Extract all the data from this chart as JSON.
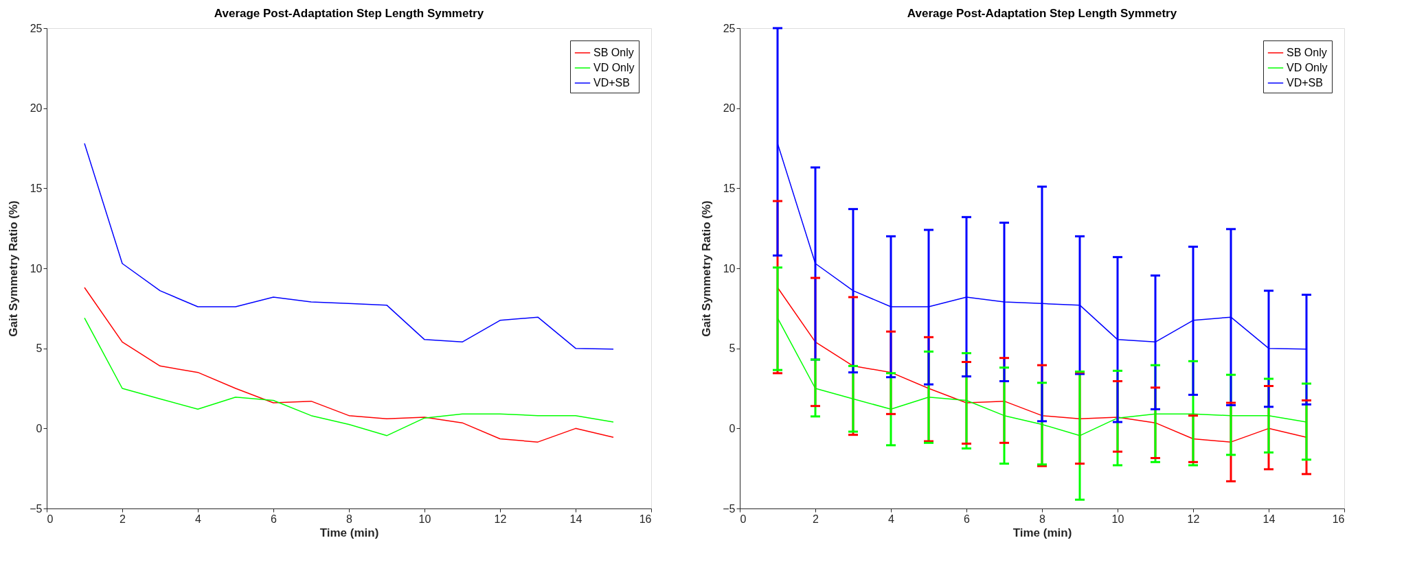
{
  "chart_data": [
    {
      "type": "line",
      "title": "Average Post-Adaptation Step Length Symmetry",
      "xlabel": "Time (min)",
      "ylabel": "Gait Symmetry Ratio (%)",
      "x": [
        1,
        2,
        3,
        4,
        5,
        6,
        7,
        8,
        9,
        10,
        11,
        12,
        13,
        14,
        15
      ],
      "xlim": [
        0,
        16
      ],
      "xticks": [
        0,
        2,
        4,
        6,
        8,
        10,
        12,
        14,
        16
      ],
      "ylim": [
        -5,
        25
      ],
      "yticks": [
        -5,
        0,
        5,
        10,
        15,
        20,
        25
      ],
      "grid": false,
      "legend": "top right",
      "line_style": "solid",
      "series": [
        {
          "name": "SB Only",
          "color": "#ff0000",
          "values": [
            8.8,
            5.4,
            3.9,
            3.5,
            2.5,
            1.6,
            1.7,
            0.8,
            0.6,
            0.7,
            0.35,
            -0.65,
            -0.85,
            0.0,
            -0.55
          ]
        },
        {
          "name": "VD Only",
          "color": "#00ff00",
          "values": [
            6.9,
            2.5,
            1.85,
            1.2,
            1.95,
            1.75,
            0.8,
            0.25,
            -0.45,
            0.65,
            0.9,
            0.9,
            0.8,
            0.8,
            0.4
          ]
        },
        {
          "name": "VD+SB",
          "color": "#0000ff",
          "values": [
            17.8,
            10.3,
            8.6,
            7.6,
            7.6,
            8.2,
            7.9,
            7.8,
            7.7,
            5.55,
            5.4,
            6.75,
            6.95,
            5.0,
            4.95
          ]
        }
      ]
    },
    {
      "type": "line",
      "title": "Average Post-Adaptation Step Length Symmetry",
      "xlabel": "Time (min)",
      "ylabel": "Gait Symmetry Ratio (%)",
      "x": [
        1,
        2,
        3,
        4,
        5,
        6,
        7,
        8,
        9,
        10,
        11,
        12,
        13,
        14,
        15
      ],
      "xlim": [
        0,
        16
      ],
      "xticks": [
        0,
        2,
        4,
        6,
        8,
        10,
        12,
        14,
        16
      ],
      "ylim": [
        -5,
        25
      ],
      "yticks": [
        -5,
        0,
        5,
        10,
        15,
        20,
        25
      ],
      "grid": false,
      "legend": "top right",
      "line_style": "solid",
      "series": [
        {
          "name": "SB Only",
          "color": "#ff0000",
          "values": [
            8.8,
            5.4,
            3.9,
            3.5,
            2.5,
            1.6,
            1.7,
            0.8,
            0.6,
            0.7,
            0.35,
            -0.65,
            -0.85,
            0.0,
            -0.55
          ],
          "errors": [
            [
              3.45,
              14.2
            ],
            [
              1.4,
              9.4
            ],
            [
              -0.4,
              8.2
            ],
            [
              0.9,
              6.05
            ],
            [
              -0.8,
              5.7
            ],
            [
              -0.95,
              4.15
            ],
            [
              -0.9,
              4.4
            ],
            [
              -2.35,
              3.95
            ],
            [
              -2.2,
              3.5
            ],
            [
              -1.45,
              2.95
            ],
            [
              -1.85,
              2.55
            ],
            [
              -2.1,
              0.8
            ],
            [
              -3.3,
              1.6
            ],
            [
              -2.55,
              2.65
            ],
            [
              -2.85,
              1.75
            ]
          ]
        },
        {
          "name": "VD Only",
          "color": "#00ff00",
          "values": [
            6.9,
            2.5,
            1.85,
            1.2,
            1.95,
            1.75,
            0.8,
            0.25,
            -0.45,
            0.65,
            0.9,
            0.9,
            0.8,
            0.8,
            0.4
          ],
          "errors": [
            [
              3.65,
              10.05
            ],
            [
              0.75,
              4.3
            ],
            [
              -0.2,
              3.9
            ],
            [
              -1.05,
              3.45
            ],
            [
              -0.9,
              4.8
            ],
            [
              -1.25,
              4.7
            ],
            [
              -2.2,
              3.8
            ],
            [
              -2.25,
              2.85
            ],
            [
              -4.45,
              3.55
            ],
            [
              -2.3,
              3.6
            ],
            [
              -2.1,
              3.95
            ],
            [
              -2.3,
              4.2
            ],
            [
              -1.65,
              3.35
            ],
            [
              -1.5,
              3.1
            ],
            [
              -1.95,
              2.8
            ]
          ]
        },
        {
          "name": "VD+SB",
          "color": "#0000ff",
          "values": [
            17.8,
            10.3,
            8.6,
            7.6,
            7.6,
            8.2,
            7.9,
            7.8,
            7.7,
            5.55,
            5.4,
            6.75,
            6.95,
            5.0,
            4.95
          ],
          "errors": [
            [
              10.8,
              25.0
            ],
            [
              4.3,
              16.3
            ],
            [
              3.5,
              13.7
            ],
            [
              3.2,
              12.0
            ],
            [
              2.75,
              12.4
            ],
            [
              3.25,
              13.2
            ],
            [
              2.95,
              12.85
            ],
            [
              0.45,
              15.1
            ],
            [
              3.4,
              12.0
            ],
            [
              0.4,
              10.7
            ],
            [
              1.2,
              9.55
            ],
            [
              2.1,
              11.35
            ],
            [
              1.45,
              12.45
            ],
            [
              1.35,
              8.6
            ],
            [
              1.5,
              8.35
            ]
          ]
        }
      ]
    }
  ]
}
